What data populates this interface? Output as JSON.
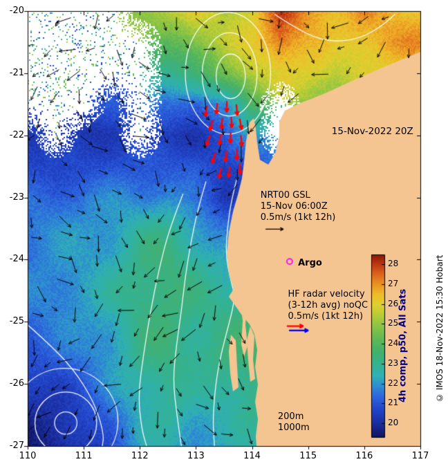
{
  "map": {
    "bounds": {
      "lon_min": 110,
      "lon_max": 117,
      "lat_min": -27,
      "lat_max": -20
    },
    "background": "#ffffff",
    "land_color": "#f5c591",
    "x_ticks": [
      110,
      111,
      112,
      113,
      114,
      115,
      116,
      117
    ],
    "y_ticks": [
      -20,
      -21,
      -22,
      -23,
      -24,
      -25,
      -26,
      -27
    ],
    "credit": "© IMOS 18-Nov-2022 15:30 Hobart",
    "colorbar": {
      "label": "4h comp, p50, All Sats",
      "label_color": "#00008b",
      "ticks": [
        20,
        21,
        22,
        23,
        24,
        25,
        26,
        27,
        28
      ],
      "vmin": 19.3,
      "vmax": 28.5,
      "stops": [
        [
          19.3,
          "#10155e"
        ],
        [
          20.0,
          "#1b2d9e"
        ],
        [
          20.7,
          "#2144c8"
        ],
        [
          21.3,
          "#2d62dd"
        ],
        [
          21.9,
          "#2e8ed2"
        ],
        [
          22.4,
          "#2fb0b4"
        ],
        [
          23.0,
          "#34b291"
        ],
        [
          23.6,
          "#43b06e"
        ],
        [
          24.2,
          "#5cb857"
        ],
        [
          24.8,
          "#83c247"
        ],
        [
          25.4,
          "#b2cb38"
        ],
        [
          26.0,
          "#dfd02e"
        ],
        [
          26.5,
          "#eebc2a"
        ],
        [
          27.0,
          "#ea9423"
        ],
        [
          27.5,
          "#dd661c"
        ],
        [
          28.0,
          "#c03a12"
        ],
        [
          28.5,
          "#8c150a"
        ]
      ]
    },
    "annotations": [
      {
        "name": "date-label",
        "lines": [
          "15-Nov-2022 20Z"
        ],
        "lon": 115.42,
        "lat": -21.85,
        "size": 13.5
      },
      {
        "name": "nrt-legend",
        "lines": [
          "NRT00 GSL",
          "15-Nov 06:00Z",
          "0.5m/s (1kt 12h)"
        ],
        "lon": 114.15,
        "lat": -22.88,
        "size": 13
      },
      {
        "name": "argo-label",
        "lines": [
          "Argo"
        ],
        "lon": 114.82,
        "lat": -23.97,
        "size": 13,
        "bold": true
      },
      {
        "name": "hf-legend",
        "lines": [
          "HF radar velocity",
          "(3-12h avg) noQC",
          "0.5m/s (1kt 12h)"
        ],
        "lon": 114.64,
        "lat": -24.47,
        "size": 13
      },
      {
        "name": "depth-contour-labels",
        "lines": [
          "200m",
          "1000m"
        ],
        "lon": 114.46,
        "lat": -26.44,
        "size": 13
      }
    ],
    "argo_marker": {
      "lon": 114.67,
      "lat": -24.03,
      "color": "#ff00ff"
    },
    "ref_arrows": {
      "black": {
        "lon": 114.24,
        "lat": -23.51,
        "len": 26,
        "color": "#000000"
      },
      "red": {
        "lon": 114.62,
        "lat": -25.07,
        "len": 24,
        "color": "#ff0000"
      },
      "blue": {
        "lon": 114.66,
        "lat": -25.14,
        "len": 28,
        "color": "#0000ff"
      }
    },
    "hf_arrows": [
      [
        113.2,
        -21.52,
        100
      ],
      [
        113.38,
        -21.48,
        95
      ],
      [
        113.55,
        -21.45,
        90
      ],
      [
        113.72,
        -21.5,
        85
      ],
      [
        113.3,
        -21.75,
        105
      ],
      [
        113.47,
        -21.72,
        95
      ],
      [
        113.63,
        -21.7,
        88
      ],
      [
        113.78,
        -21.73,
        80
      ],
      [
        113.25,
        -22.0,
        110
      ],
      [
        113.45,
        -21.98,
        100
      ],
      [
        113.62,
        -21.95,
        92
      ],
      [
        113.8,
        -22.0,
        84
      ],
      [
        113.35,
        -22.28,
        108
      ],
      [
        113.55,
        -22.25,
        98
      ],
      [
        113.73,
        -22.22,
        90
      ],
      [
        113.45,
        -22.52,
        102
      ],
      [
        113.6,
        -22.5,
        95
      ],
      [
        113.78,
        -22.45,
        88
      ]
    ],
    "hf_arrow_color": "#ff0000",
    "vector_field": {
      "spacing_x": 30,
      "spacing_y": 35,
      "color": "#000000"
    },
    "sst_grid": {
      "lon0": 110,
      "dlon": 0.5,
      "lat0": -20,
      "dlat": -0.5,
      "values": [
        [
          null,
          null,
          null,
          null,
          25,
          25.5,
          26,
          25.5,
          26,
          28,
          27,
          26.5,
          27,
          26.5,
          26.5
        ],
        [
          null,
          null,
          null,
          null,
          null,
          24,
          25,
          25.5,
          26,
          27.5,
          26.5,
          26,
          26.5,
          27,
          27
        ],
        [
          null,
          null,
          null,
          null,
          null,
          23,
          23.5,
          24.5,
          25.5,
          26,
          26,
          25.5,
          26,
          26,
          26
        ],
        [
          null,
          null,
          null,
          21,
          null,
          21.5,
          21,
          22,
          24,
          null,
          25,
          25,
          25,
          25,
          25
        ],
        [
          20.5,
          null,
          20.3,
          20.5,
          null,
          20.4,
          20.3,
          21,
          22,
          null,
          23,
          23,
          23,
          23,
          23
        ],
        [
          20.8,
          20.6,
          20.8,
          21,
          21,
          21,
          21.2,
          20.5,
          20.8,
          22,
          22,
          22,
          22,
          22,
          22
        ],
        [
          21.3,
          21.4,
          21.6,
          21.8,
          21.8,
          22,
          21.2,
          20.4,
          21,
          21,
          21,
          21,
          21,
          21,
          21
        ],
        [
          21.7,
          21.9,
          22,
          22.2,
          22.8,
          23,
          22.3,
          21.5,
          22,
          22,
          22,
          22,
          22,
          22,
          22
        ],
        [
          21.6,
          21.9,
          22.1,
          22.4,
          23.2,
          23.4,
          22.8,
          22.3,
          22.5,
          22.5,
          22.5,
          22.5,
          22.5,
          22.5,
          22.5
        ],
        [
          21.7,
          21.9,
          22.2,
          22.7,
          23.3,
          23.5,
          23.1,
          22.8,
          23,
          23,
          23,
          23,
          23,
          23,
          23
        ],
        [
          21.4,
          21.7,
          22,
          22.4,
          23.2,
          23.4,
          23,
          23.2,
          23.5,
          23.5,
          23.5,
          23.5,
          23.5,
          23.5,
          23.5
        ],
        [
          21,
          21.3,
          21.7,
          22.2,
          23.1,
          23.3,
          23,
          23.3,
          23.5,
          23.5,
          23.5,
          23.5,
          23.5,
          23.5,
          23.5
        ],
        [
          20.4,
          20.7,
          21.1,
          21.9,
          22.8,
          23.1,
          22.6,
          23,
          23.3,
          23.3,
          23.3,
          23.3,
          23.3,
          23.3,
          23.3
        ],
        [
          19.9,
          20.1,
          20.7,
          21.4,
          22.4,
          22.8,
          22.3,
          22.5,
          23,
          23,
          23,
          23,
          23,
          23,
          23
        ],
        [
          19.6,
          19.8,
          20.3,
          21.1,
          22.2,
          22.4,
          22.1,
          22.3,
          22.4,
          22.4,
          22.4,
          22.4,
          22.4,
          22.4,
          22.4
        ]
      ]
    },
    "land": [
      [
        [
          117.0,
          -20.657
        ],
        [
          116.408,
          -20.879
        ],
        [
          115.916,
          -21.068
        ],
        [
          115.299,
          -21.324
        ],
        [
          114.831,
          -21.491
        ],
        [
          114.584,
          -21.603
        ],
        [
          114.486,
          -21.781
        ],
        [
          114.486,
          -22.003
        ],
        [
          114.412,
          -22.292
        ],
        [
          114.289,
          -22.47
        ],
        [
          114.141,
          -22.393
        ],
        [
          114.092,
          -22.114
        ],
        [
          114.067,
          -21.892
        ],
        [
          114.03,
          -21.725
        ],
        [
          113.956,
          -21.792
        ],
        [
          113.894,
          -22.092
        ],
        [
          113.857,
          -22.437
        ],
        [
          113.82,
          -22.693
        ],
        [
          113.746,
          -22.96
        ],
        [
          113.66,
          -23.227
        ],
        [
          113.586,
          -23.561
        ],
        [
          113.549,
          -23.895
        ],
        [
          113.586,
          -24.229
        ],
        [
          113.672,
          -24.474
        ],
        [
          113.586,
          -24.596
        ],
        [
          113.709,
          -24.752
        ],
        [
          113.82,
          -24.897
        ],
        [
          113.956,
          -25.041
        ],
        [
          114.042,
          -25.197
        ],
        [
          114.092,
          -25.453
        ],
        [
          114.055,
          -25.731
        ],
        [
          114.104,
          -26.01
        ],
        [
          114.055,
          -26.288
        ],
        [
          114.104,
          -26.566
        ],
        [
          114.067,
          -26.844
        ],
        [
          114.079,
          -27.0
        ],
        [
          117.0,
          -27.0
        ]
      ],
      [
        [
          113.845,
          -24.585
        ],
        [
          113.906,
          -24.674
        ],
        [
          113.882,
          -25.053
        ],
        [
          113.919,
          -25.386
        ],
        [
          113.857,
          -25.565
        ],
        [
          113.808,
          -25.364
        ],
        [
          113.833,
          -24.986
        ],
        [
          113.796,
          -24.719
        ]
      ],
      [
        [
          113.623,
          -25.208
        ],
        [
          113.709,
          -25.297
        ],
        [
          113.734,
          -25.72
        ],
        [
          113.758,
          -26.054
        ],
        [
          113.66,
          -26.121
        ],
        [
          113.611,
          -25.832
        ],
        [
          113.586,
          -25.475
        ]
      ],
      [
        [
          113.968,
          -25.075
        ],
        [
          114.042,
          -25.23
        ],
        [
          114.018,
          -25.609
        ],
        [
          114.055,
          -25.92
        ],
        [
          113.968,
          -25.965
        ],
        [
          113.931,
          -25.609
        ],
        [
          113.906,
          -25.297
        ]
      ]
    ],
    "contours": {
      "color": "#ffffff",
      "ellipses": [
        {
          "lon": 113.57,
          "lat": -21.0,
          "rx": 0.76,
          "ry": 0.98
        },
        {
          "lon": 113.6,
          "lat": -21.02,
          "rx": 0.49,
          "ry": 0.67
        },
        {
          "lon": 113.62,
          "lat": -21.05,
          "rx": 0.26,
          "ry": 0.36
        },
        {
          "lon": 110.68,
          "lat": -26.63,
          "rx": 0.2,
          "ry": 0.18
        },
        {
          "lon": 110.68,
          "lat": -26.63,
          "rx": 0.55,
          "ry": 0.5
        },
        {
          "lon": 110.66,
          "lat": -26.6,
          "rx": 0.95,
          "ry": 0.85
        }
      ],
      "lines": [
        [
          [
            113.73,
            -22.69
          ],
          [
            113.63,
            -23.05
          ],
          [
            113.56,
            -23.49
          ],
          [
            113.53,
            -23.94
          ],
          [
            113.62,
            -24.33
          ],
          [
            113.7,
            -24.61
          ],
          [
            113.6,
            -25.0
          ],
          [
            113.45,
            -25.5
          ],
          [
            113.35,
            -26.0
          ],
          [
            113.3,
            -26.6
          ],
          [
            113.33,
            -27.0
          ]
        ],
        [
          [
            113.18,
            -22.74
          ],
          [
            113.04,
            -23.16
          ],
          [
            112.91,
            -23.72
          ],
          [
            112.81,
            -24.27
          ],
          [
            112.74,
            -24.83
          ],
          [
            112.65,
            -25.39
          ],
          [
            112.59,
            -25.94
          ],
          [
            112.66,
            -26.5
          ],
          [
            112.74,
            -27.0
          ]
        ],
        [
          [
            112.77,
            -22.94
          ],
          [
            112.53,
            -23.49
          ],
          [
            112.34,
            -24.16
          ],
          [
            112.19,
            -24.83
          ],
          [
            112.07,
            -25.5
          ],
          [
            111.97,
            -26.17
          ],
          [
            112.03,
            -26.72
          ],
          [
            112.12,
            -27.0
          ]
        ],
        [
          [
            110.0,
            -25.05
          ],
          [
            110.49,
            -25.44
          ],
          [
            110.92,
            -25.89
          ],
          [
            111.23,
            -26.39
          ],
          [
            111.36,
            -26.83
          ],
          [
            111.33,
            -27.0
          ]
        ],
        [
          [
            114.4,
            -20.05
          ],
          [
            114.9,
            -20.35
          ],
          [
            115.4,
            -20.5
          ],
          [
            115.9,
            -20.45
          ],
          [
            116.3,
            -20.25
          ],
          [
            116.55,
            -20.05
          ]
        ]
      ]
    }
  }
}
